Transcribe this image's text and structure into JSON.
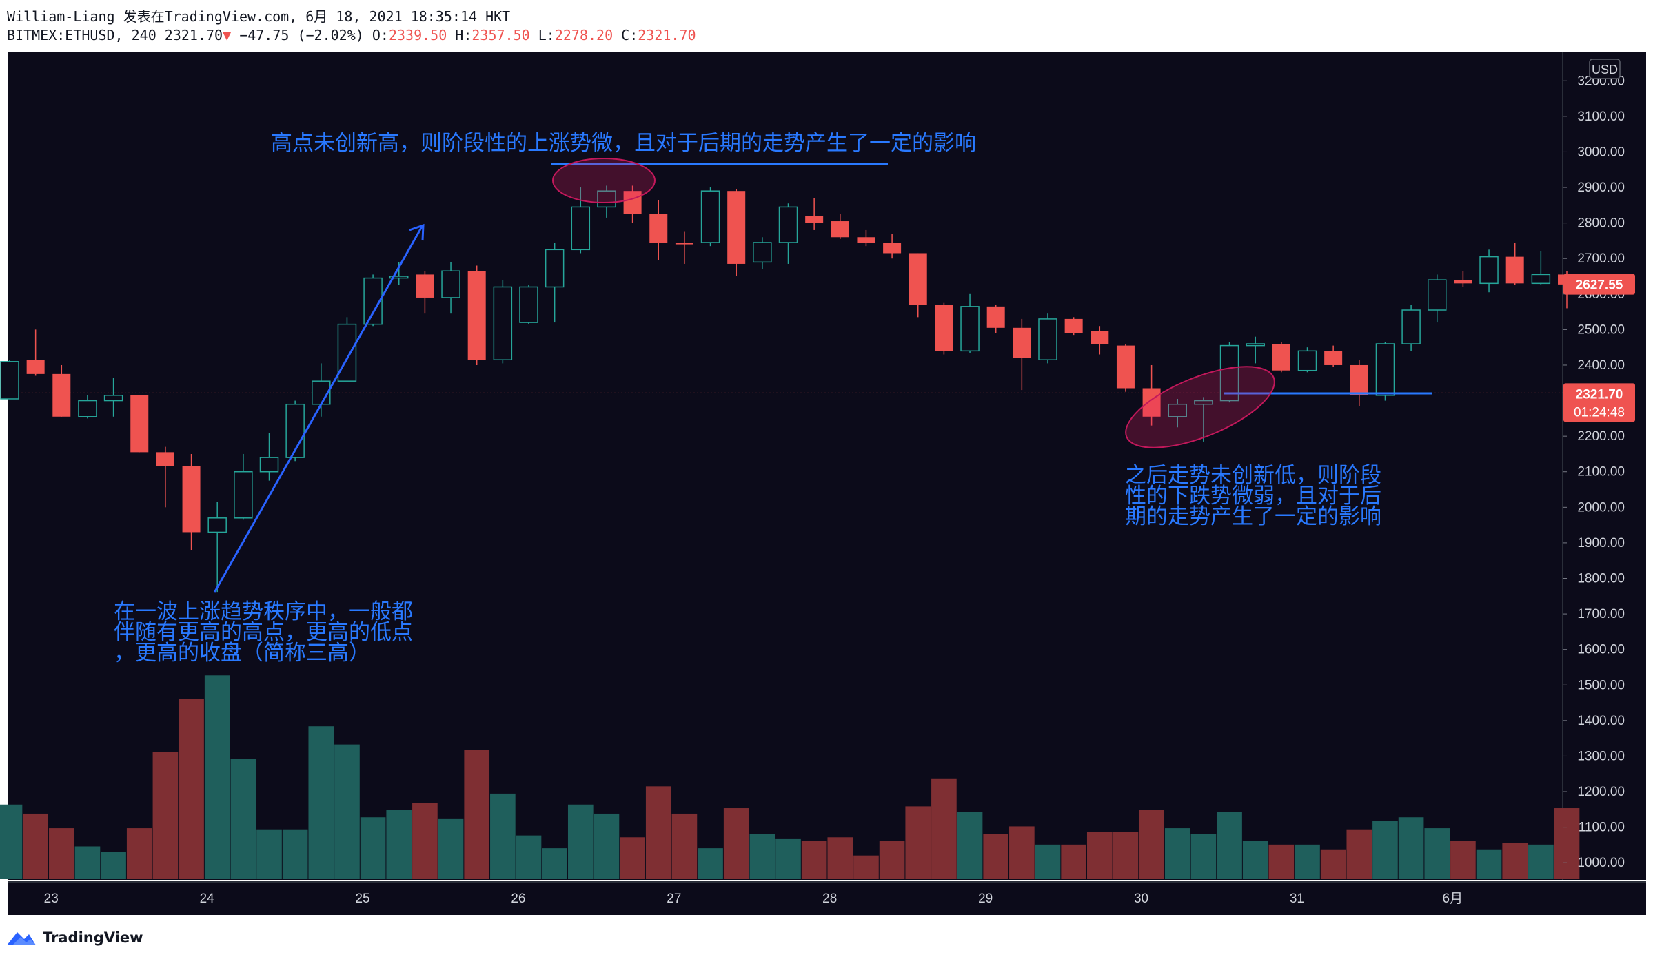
{
  "header": {
    "line1": "William-Liang 发表在TradingView.com, 6月 18, 2021 18:35:14 HKT",
    "symbol": "BITMEX:ETHUSD, 240",
    "last": "2321.70",
    "change": "−47.75 (−2.02%)",
    "o_label": "O:",
    "o_value": "2339.50",
    "h_label": "H:",
    "h_value": "2357.50",
    "l_label": "L:",
    "l_value": "2278.20",
    "c_label": "C:",
    "c_value": "2321.70"
  },
  "footer": {
    "brand": "TradingView"
  },
  "colors": {
    "background": "#0c0b1a",
    "up": "#26a69a",
    "down": "#ef5350",
    "vol_up": "#1f5f5c",
    "vol_down": "#7f2f33",
    "annotation": "#2979ff",
    "ellipse": "#e91e63"
  },
  "chart_data": {
    "type": "candlestick",
    "currency_label": "USD",
    "ylim": [
      950,
      3280
    ],
    "y_ticks": [
      {
        "v": 1000,
        "l": "1000.00"
      },
      {
        "v": 1100,
        "l": "1100.00"
      },
      {
        "v": 1200,
        "l": "1200.00"
      },
      {
        "v": 1300,
        "l": "1300.00"
      },
      {
        "v": 1400,
        "l": "1400.00"
      },
      {
        "v": 1500,
        "l": "1500.00"
      },
      {
        "v": 1600,
        "l": "1600.00"
      },
      {
        "v": 1700,
        "l": "1700.00"
      },
      {
        "v": 1800,
        "l": "1800.00"
      },
      {
        "v": 1900,
        "l": "1900.00"
      },
      {
        "v": 2000,
        "l": "2000.00"
      },
      {
        "v": 2100,
        "l": "2100.00"
      },
      {
        "v": 2200,
        "l": "2200.00"
      },
      {
        "v": 2300,
        "l": "2300.00"
      },
      {
        "v": 2400,
        "l": "2400.00"
      },
      {
        "v": 2500,
        "l": "2500.00"
      },
      {
        "v": 2600,
        "l": "2600.00"
      },
      {
        "v": 2700,
        "l": "2700.00"
      },
      {
        "v": 2800,
        "l": "2800.00"
      },
      {
        "v": 2900,
        "l": "2900.00"
      },
      {
        "v": 3000,
        "l": "3000.00"
      },
      {
        "v": 3100,
        "l": "3100.00"
      },
      {
        "v": 3200,
        "l": "3200.00"
      }
    ],
    "x_ticks": [
      {
        "i": 1.6,
        "l": "23"
      },
      {
        "i": 7.6,
        "l": "24"
      },
      {
        "i": 13.6,
        "l": "25"
      },
      {
        "i": 19.6,
        "l": "26"
      },
      {
        "i": 25.6,
        "l": "27"
      },
      {
        "i": 31.6,
        "l": "28"
      },
      {
        "i": 37.6,
        "l": "29"
      },
      {
        "i": 43.6,
        "l": "30"
      },
      {
        "i": 49.6,
        "l": "31"
      },
      {
        "i": 55.6,
        "l": "6月"
      }
    ],
    "candles": [
      {
        "o": 2305,
        "h": 2415,
        "l": 2305,
        "c": 2410
      },
      {
        "o": 2415,
        "h": 2500,
        "l": 2370,
        "c": 2375
      },
      {
        "o": 2375,
        "h": 2400,
        "l": 2255,
        "c": 2255
      },
      {
        "o": 2255,
        "h": 2315,
        "l": 2250,
        "c": 2300
      },
      {
        "o": 2300,
        "h": 2365,
        "l": 2255,
        "c": 2315
      },
      {
        "o": 2315,
        "h": 2315,
        "l": 2155,
        "c": 2155
      },
      {
        "o": 2155,
        "h": 2170,
        "l": 2000,
        "c": 2115
      },
      {
        "o": 2115,
        "h": 2150,
        "l": 1880,
        "c": 1930
      },
      {
        "o": 1930,
        "h": 2015,
        "l": 1760,
        "c": 1970
      },
      {
        "o": 1970,
        "h": 2150,
        "l": 1965,
        "c": 2100
      },
      {
        "o": 2100,
        "h": 2210,
        "l": 2075,
        "c": 2140
      },
      {
        "o": 2140,
        "h": 2300,
        "l": 2130,
        "c": 2290
      },
      {
        "o": 2290,
        "h": 2405,
        "l": 2255,
        "c": 2355
      },
      {
        "o": 2355,
        "h": 2535,
        "l": 2355,
        "c": 2515
      },
      {
        "o": 2515,
        "h": 2655,
        "l": 2510,
        "c": 2645
      },
      {
        "o": 2645,
        "h": 2690,
        "l": 2625,
        "c": 2650
      },
      {
        "o": 2655,
        "h": 2665,
        "l": 2545,
        "c": 2590
      },
      {
        "o": 2590,
        "h": 2690,
        "l": 2545,
        "c": 2665
      },
      {
        "o": 2665,
        "h": 2680,
        "l": 2400,
        "c": 2415
      },
      {
        "o": 2415,
        "h": 2640,
        "l": 2405,
        "c": 2620
      },
      {
        "o": 2520,
        "h": 2625,
        "l": 2515,
        "c": 2620
      },
      {
        "o": 2620,
        "h": 2745,
        "l": 2520,
        "c": 2725
      },
      {
        "o": 2725,
        "h": 2900,
        "l": 2715,
        "c": 2845
      },
      {
        "o": 2845,
        "h": 2905,
        "l": 2815,
        "c": 2890
      },
      {
        "o": 2890,
        "h": 2905,
        "l": 2800,
        "c": 2825
      },
      {
        "o": 2825,
        "h": 2865,
        "l": 2695,
        "c": 2745
      },
      {
        "o": 2745,
        "h": 2775,
        "l": 2685,
        "c": 2740
      },
      {
        "o": 2745,
        "h": 2900,
        "l": 2735,
        "c": 2890
      },
      {
        "o": 2890,
        "h": 2895,
        "l": 2650,
        "c": 2685
      },
      {
        "o": 2690,
        "h": 2760,
        "l": 2670,
        "c": 2745
      },
      {
        "o": 2745,
        "h": 2855,
        "l": 2685,
        "c": 2845
      },
      {
        "o": 2820,
        "h": 2870,
        "l": 2780,
        "c": 2800
      },
      {
        "o": 2805,
        "h": 2825,
        "l": 2755,
        "c": 2760
      },
      {
        "o": 2760,
        "h": 2780,
        "l": 2735,
        "c": 2745
      },
      {
        "o": 2745,
        "h": 2770,
        "l": 2700,
        "c": 2715
      },
      {
        "o": 2715,
        "h": 2715,
        "l": 2535,
        "c": 2570
      },
      {
        "o": 2570,
        "h": 2575,
        "l": 2430,
        "c": 2440
      },
      {
        "o": 2440,
        "h": 2600,
        "l": 2435,
        "c": 2565
      },
      {
        "o": 2565,
        "h": 2570,
        "l": 2490,
        "c": 2505
      },
      {
        "o": 2505,
        "h": 2530,
        "l": 2330,
        "c": 2420
      },
      {
        "o": 2415,
        "h": 2545,
        "l": 2405,
        "c": 2530
      },
      {
        "o": 2530,
        "h": 2535,
        "l": 2485,
        "c": 2490
      },
      {
        "o": 2495,
        "h": 2510,
        "l": 2430,
        "c": 2460
      },
      {
        "o": 2455,
        "h": 2460,
        "l": 2325,
        "c": 2335
      },
      {
        "o": 2335,
        "h": 2400,
        "l": 2230,
        "c": 2255
      },
      {
        "o": 2255,
        "h": 2305,
        "l": 2225,
        "c": 2290
      },
      {
        "o": 2290,
        "h": 2310,
        "l": 2185,
        "c": 2300
      },
      {
        "o": 2300,
        "h": 2465,
        "l": 2295,
        "c": 2455
      },
      {
        "o": 2455,
        "h": 2480,
        "l": 2405,
        "c": 2460
      },
      {
        "o": 2460,
        "h": 2465,
        "l": 2380,
        "c": 2385
      },
      {
        "o": 2385,
        "h": 2450,
        "l": 2380,
        "c": 2440
      },
      {
        "o": 2440,
        "h": 2455,
        "l": 2395,
        "c": 2400
      },
      {
        "o": 2400,
        "h": 2415,
        "l": 2285,
        "c": 2315
      },
      {
        "o": 2315,
        "h": 2465,
        "l": 2300,
        "c": 2460
      },
      {
        "o": 2460,
        "h": 2570,
        "l": 2440,
        "c": 2555
      },
      {
        "o": 2555,
        "h": 2655,
        "l": 2520,
        "c": 2640
      },
      {
        "o": 2640,
        "h": 2665,
        "l": 2620,
        "c": 2630
      },
      {
        "o": 2630,
        "h": 2725,
        "l": 2605,
        "c": 2705
      },
      {
        "o": 2705,
        "h": 2745,
        "l": 2625,
        "c": 2630
      },
      {
        "o": 2630,
        "h": 2720,
        "l": 2625,
        "c": 2655
      },
      {
        "o": 2655,
        "h": 2665,
        "l": 2560,
        "c": 2627
      }
    ],
    "volume": {
      "min": 950,
      "max": 1520,
      "values": [
        1155,
        1130,
        1090,
        1040,
        1025,
        1090,
        1300,
        1445,
        1510,
        1280,
        1085,
        1085,
        1370,
        1320,
        1120,
        1140,
        1160,
        1115,
        1305,
        1185,
        1070,
        1035,
        1155,
        1130,
        1065,
        1205,
        1130,
        1035,
        1145,
        1075,
        1060,
        1055,
        1065,
        1015,
        1055,
        1150,
        1225,
        1135,
        1075,
        1095,
        1045,
        1045,
        1080,
        1080,
        1140,
        1090,
        1075,
        1135,
        1055,
        1045,
        1045,
        1030,
        1085,
        1110,
        1120,
        1090,
        1055,
        1030,
        1050,
        1045,
        1145
      ]
    },
    "price_labels": [
      {
        "value": 2627.55,
        "text": "2627.55",
        "sub": ""
      },
      {
        "value": 2321.7,
        "text": "2321.70",
        "sub": "01:24:48"
      }
    ],
    "annotations": [
      {
        "lines": [
          "高点未创新高，则阶段性的上涨势微，且对于后期的走势产生了一定的影响"
        ]
      },
      {
        "lines": [
          "之后走势未创新低，则阶段",
          "性的下跌势微弱，且对于后",
          "期的走势产生了一定的影响"
        ]
      },
      {
        "lines": [
          "在一波上涨趋势秩序中，一般都",
          "伴随有更高的高点，更高的低点",
          "，更高的收盘（简称三高）"
        ]
      }
    ]
  }
}
